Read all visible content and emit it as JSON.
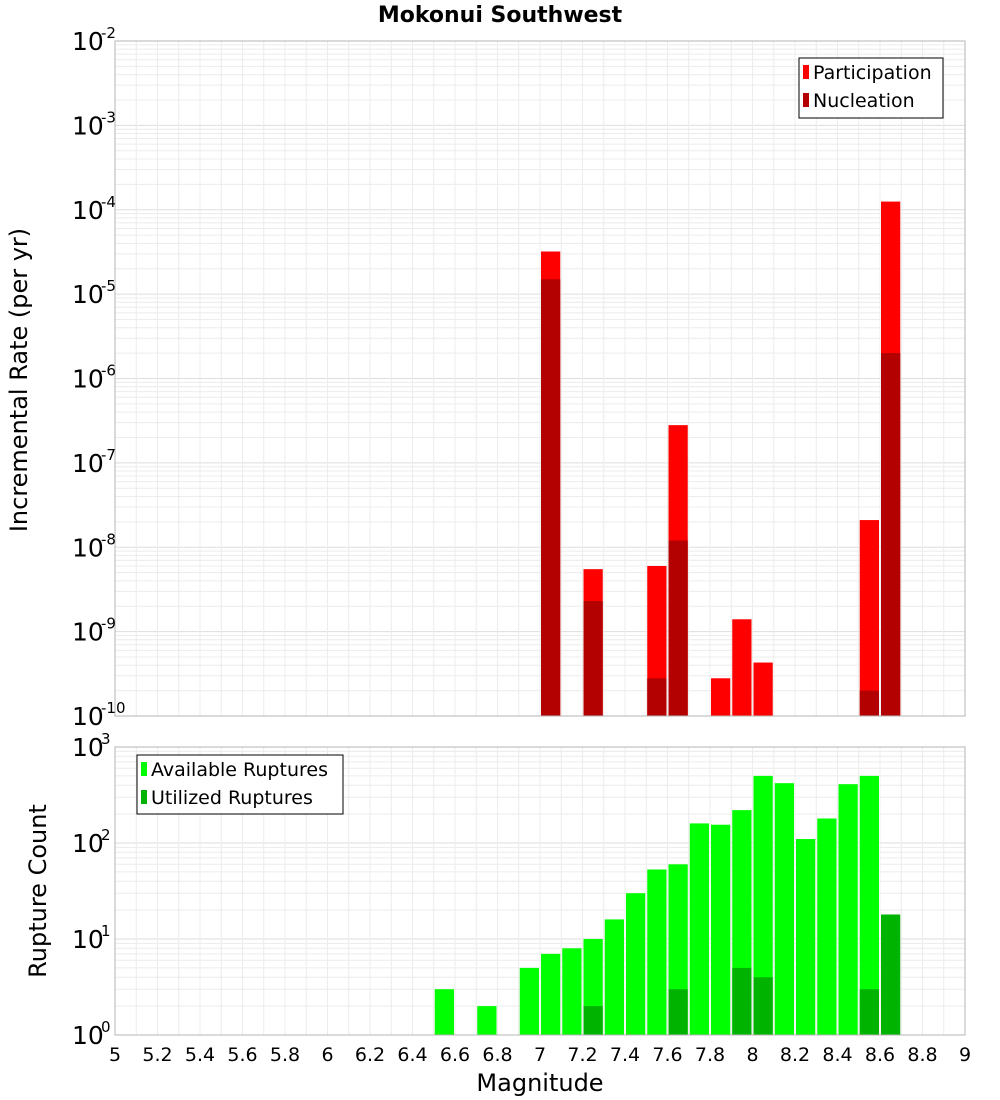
{
  "chart_data": [
    {
      "type": "bar",
      "title": "Mokonui Southwest",
      "ylabel": "Incremental Rate (per yr)",
      "yscale": "log",
      "ylim_exp": [
        -10,
        -2
      ],
      "xlim": [
        5,
        9
      ],
      "bin_width": 0.1,
      "legend": "top-right",
      "series": [
        {
          "name": "Participation",
          "color": "#ff0000",
          "points": [
            {
              "x": 7.05,
              "y": 3.2e-05
            },
            {
              "x": 7.25,
              "y": 5.5e-09
            },
            {
              "x": 7.55,
              "y": 6e-09
            },
            {
              "x": 7.65,
              "y": 2.8e-07
            },
            {
              "x": 7.85,
              "y": 2.8e-10
            },
            {
              "x": 7.95,
              "y": 1.4e-09
            },
            {
              "x": 8.05,
              "y": 4.3e-10
            },
            {
              "x": 8.55,
              "y": 2.1e-08
            },
            {
              "x": 8.65,
              "y": 0.000125
            }
          ]
        },
        {
          "name": "Nucleation",
          "color": "#b30000",
          "points": [
            {
              "x": 7.05,
              "y": 1.5e-05
            },
            {
              "x": 7.25,
              "y": 2.3e-09
            },
            {
              "x": 7.55,
              "y": 2.8e-10
            },
            {
              "x": 7.65,
              "y": 1.2e-08
            },
            {
              "x": 8.55,
              "y": 2e-10
            },
            {
              "x": 8.65,
              "y": 2e-06
            }
          ]
        }
      ]
    },
    {
      "type": "bar",
      "ylabel": "Rupture Count",
      "xlabel": "Magnitude",
      "yscale": "log",
      "ylim_exp": [
        0,
        3
      ],
      "xlim": [
        5,
        9
      ],
      "bin_width": 0.1,
      "legend": "top-left",
      "xticks": [
        "5",
        "5.2",
        "5.4",
        "5.6",
        "5.8",
        "6",
        "6.2",
        "6.4",
        "6.6",
        "6.8",
        "7",
        "7.2",
        "7.4",
        "7.6",
        "7.8",
        "8",
        "8.2",
        "8.4",
        "8.6",
        "8.8",
        "9"
      ],
      "series": [
        {
          "name": "Available Ruptures",
          "color": "#00ff00",
          "points": [
            {
              "x": 6.55,
              "y": 3
            },
            {
              "x": 6.75,
              "y": 2
            },
            {
              "x": 6.85,
              "y": 1
            },
            {
              "x": 6.95,
              "y": 5
            },
            {
              "x": 7.05,
              "y": 7
            },
            {
              "x": 7.15,
              "y": 8
            },
            {
              "x": 7.25,
              "y": 10
            },
            {
              "x": 7.35,
              "y": 16
            },
            {
              "x": 7.45,
              "y": 30
            },
            {
              "x": 7.55,
              "y": 53
            },
            {
              "x": 7.65,
              "y": 60
            },
            {
              "x": 7.75,
              "y": 160
            },
            {
              "x": 7.85,
              "y": 155
            },
            {
              "x": 7.95,
              "y": 220
            },
            {
              "x": 8.05,
              "y": 500
            },
            {
              "x": 8.15,
              "y": 420
            },
            {
              "x": 8.25,
              "y": 110
            },
            {
              "x": 8.35,
              "y": 180
            },
            {
              "x": 8.45,
              "y": 410
            },
            {
              "x": 8.55,
              "y": 500
            }
          ]
        },
        {
          "name": "Utilized Ruptures",
          "color": "#00b300",
          "points": [
            {
              "x": 7.05,
              "y": 1
            },
            {
              "x": 7.25,
              "y": 2
            },
            {
              "x": 7.35,
              "y": 1
            },
            {
              "x": 7.55,
              "y": 1
            },
            {
              "x": 7.65,
              "y": 3
            },
            {
              "x": 7.85,
              "y": 1
            },
            {
              "x": 7.95,
              "y": 5
            },
            {
              "x": 8.05,
              "y": 4
            },
            {
              "x": 8.55,
              "y": 3
            },
            {
              "x": 8.65,
              "y": 18
            }
          ]
        }
      ]
    }
  ]
}
